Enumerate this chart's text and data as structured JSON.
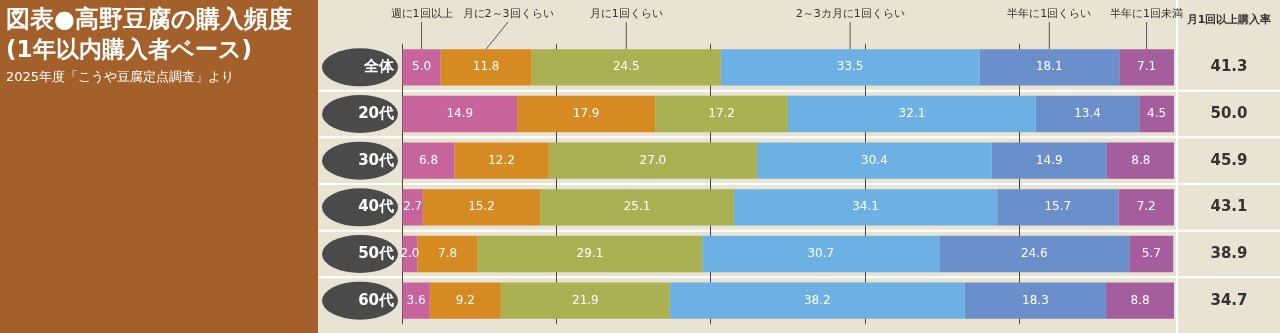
{
  "chart_data": {
    "type": "bar",
    "orientation": "horizontal",
    "stacked": true,
    "title": "図表●高野豆腐の購入頻度",
    "subtitle": "(1年以内購入者ベース)",
    "annotations": [
      "2025年度「こうや豆腐定点調査」より",
      "月1回以上購入率",
      "41.3",
      "50.0",
      "45.9",
      "43.1",
      "38.9",
      "34.7"
    ],
    "categories": [
      "全体",
      "20代",
      "30代",
      "40代",
      "50代",
      "60代"
    ],
    "series": [
      {
        "name": "週に1回以上",
        "color": "#c8649c",
        "values": [
          5.0,
          14.9,
          6.8,
          2.7,
          2.0,
          3.6
        ],
        "value_labels": [
          "5.0",
          "14.9",
          "6.8",
          "2.7",
          "2.0",
          "3.6"
        ]
      },
      {
        "name": "月に2～3回くらい",
        "color": "#d68a22",
        "values": [
          11.8,
          17.9,
          12.2,
          15.2,
          7.8,
          9.2
        ],
        "value_labels": [
          "11.8",
          "17.9",
          "12.2",
          "15.2",
          "7.8",
          "9.2"
        ]
      },
      {
        "name": "月に1回くらい",
        "color": "#a9b152",
        "values": [
          24.5,
          17.2,
          27.0,
          25.1,
          29.1,
          21.9
        ],
        "value_labels": [
          "24.5",
          "17.2",
          "27.0",
          "25.1",
          "29.1",
          "21.9"
        ]
      },
      {
        "name": "2～3カ月に1回くらい",
        "color": "#6cb0e4",
        "values": [
          33.5,
          32.1,
          30.4,
          34.1,
          30.7,
          38.2
        ],
        "value_labels": [
          "33.5",
          "32.1",
          "30.4",
          "34.1",
          "30.7",
          "38.2"
        ]
      },
      {
        "name": "半年に1回くらい",
        "color": "#6b8fca",
        "values": [
          18.1,
          13.4,
          14.9,
          15.7,
          24.6,
          18.3
        ],
        "value_labels": [
          "18.1",
          "13.4",
          "14.9",
          "15.7",
          "24.6",
          "18.3"
        ]
      },
      {
        "name": "半年に1回未満",
        "color": "#a45e9e",
        "values": [
          7.1,
          4.5,
          8.8,
          7.2,
          5.7,
          8.8
        ],
        "value_labels": [
          "7.1",
          "4.5",
          "8.8",
          "7.2",
          "5.7",
          "8.8"
        ]
      }
    ],
    "xlim": [
      0,
      100
    ],
    "xticks": [
      {
        "value": 0,
        "label": null
      },
      {
        "value": 20,
        "label": null
      },
      {
        "value": 40,
        "label": null
      },
      {
        "value": 60,
        "label": null
      },
      {
        "value": 80,
        "label": null
      }
    ],
    "tick_labels": "y",
    "grid": "x",
    "legend": "top"
  }
}
